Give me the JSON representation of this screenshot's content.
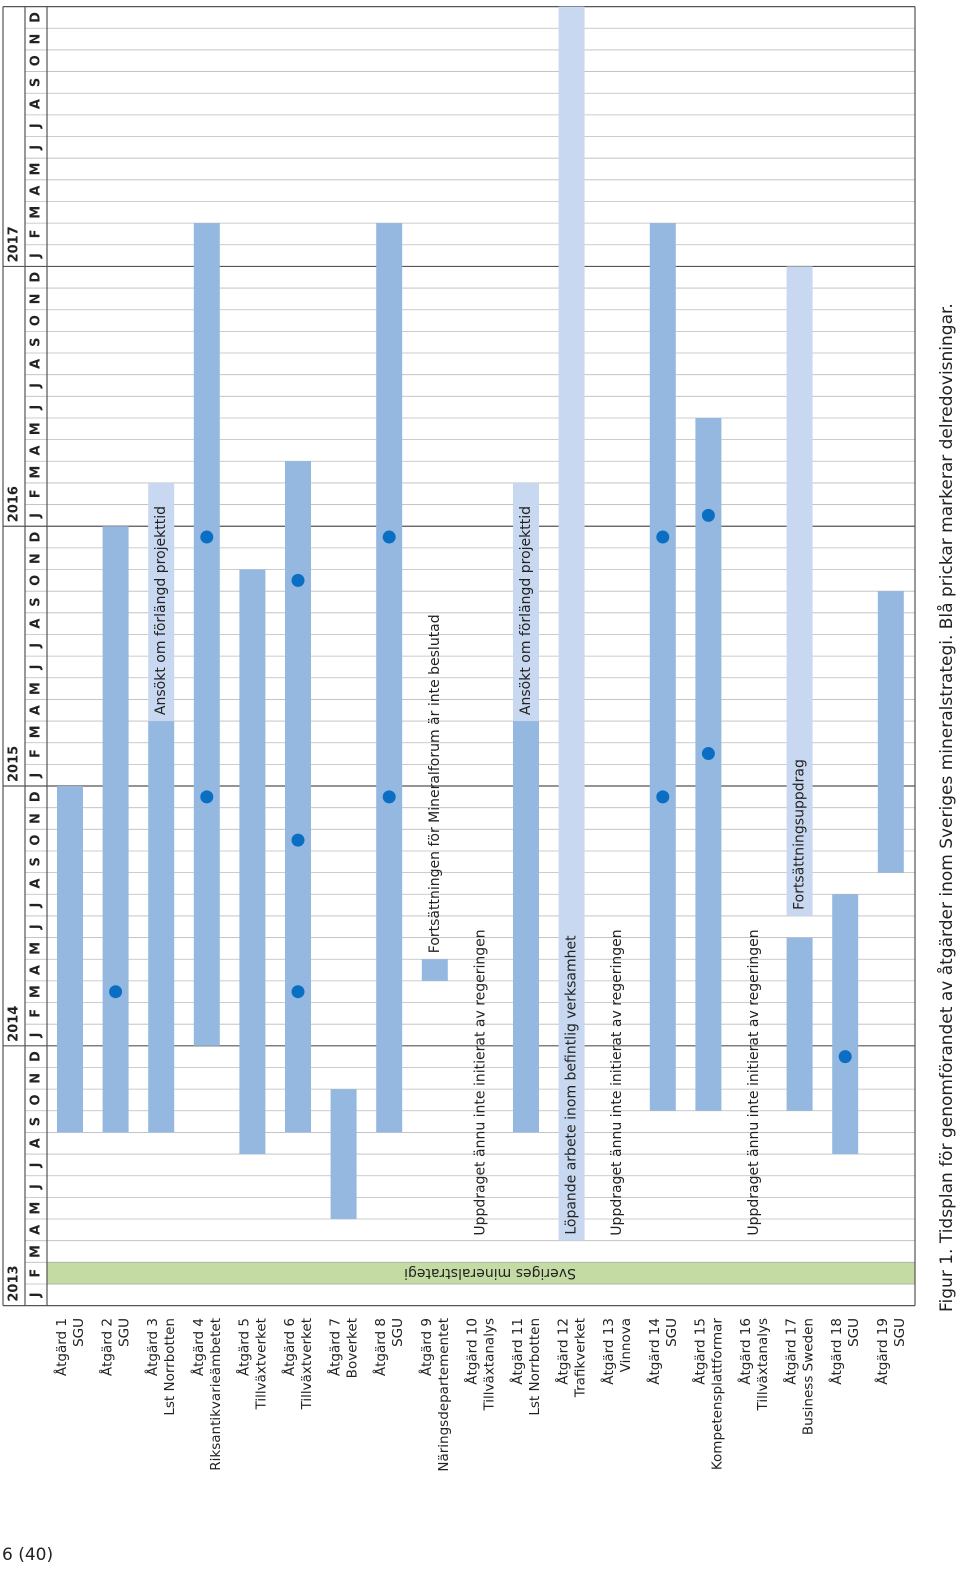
{
  "chart_data": {
    "type": "gantt",
    "caption": "Figur 1. Tidsplan för genomförandet av åtgärder inom Sveriges mineralstrategi. Blå prickar markerar delredovisningar.",
    "page_number": "6 (40)",
    "years": [
      "2013",
      "2014",
      "2015",
      "2016",
      "2017"
    ],
    "month_labels": [
      "J",
      "F",
      "M",
      "A",
      "M",
      "J",
      "J",
      "A",
      "S",
      "O",
      "N",
      "D"
    ],
    "strategy": {
      "label": "Sveriges mineralstrategi",
      "month": "2013-02",
      "color": "#c5dba4"
    },
    "milestone_color": "#0a6fc2",
    "tasks": [
      {
        "label": "Åtgärd 1",
        "agency": "SGU",
        "bars": [
          {
            "start": "2013-09",
            "end": "2014-12",
            "color": "#95b8e1"
          }
        ]
      },
      {
        "label": "Åtgärd 2",
        "agency": "SGU",
        "bars": [
          {
            "start": "2013-09",
            "end": "2015-12",
            "color": "#95b8e1"
          }
        ],
        "milestones": [
          "2014-03"
        ]
      },
      {
        "label": "Åtgärd 3",
        "agency": "Lst Norrbotten",
        "bars": [
          {
            "start": "2013-09",
            "end": "2015-03",
            "color": "#95b8e1"
          },
          {
            "start": "2015-04",
            "end": "2016-02",
            "color": "#c8d8f0",
            "text": "Ansökt om förlängd projekttid"
          }
        ]
      },
      {
        "label": "Åtgärd 4",
        "agency": "Riksantikvarieämbetet",
        "bars": [
          {
            "start": "2014-01",
            "end": "2017-02",
            "color": "#95b8e1"
          }
        ],
        "milestones": [
          "2014-12",
          "2015-12"
        ]
      },
      {
        "label": "Åtgärd 5",
        "agency": "Tillväxtverket",
        "bars": [
          {
            "start": "2013-08",
            "end": "2015-10",
            "color": "#95b8e1"
          }
        ]
      },
      {
        "label": "Åtgärd 6",
        "agency": "Tillväxtverket",
        "bars": [
          {
            "start": "2013-09",
            "end": "2016-03",
            "color": "#95b8e1"
          }
        ],
        "milestones": [
          "2014-03",
          "2014-10",
          "2015-10"
        ]
      },
      {
        "label": "Åtgärd 7",
        "agency": "Boverket",
        "bars": [
          {
            "start": "2013-05",
            "end": "2013-10",
            "color": "#95b8e1"
          }
        ]
      },
      {
        "label": "Åtgärd 8",
        "agency": "SGU",
        "bars": [
          {
            "start": "2013-09",
            "end": "2017-02",
            "color": "#95b8e1"
          }
        ],
        "milestones": [
          "2014-12",
          "2015-12"
        ]
      },
      {
        "label": "Åtgärd 9",
        "agency": "Näringsdepartementet",
        "bars": [
          {
            "start": "2014-04",
            "end": "2014-04",
            "color": "#95b8e1"
          }
        ],
        "note": "Fortsättningen för Mineralforum är inte beslutad"
      },
      {
        "label": "Åtgärd 10",
        "agency": "Tillväxtanalys",
        "note": "Uppdraget ännu inte initierat av regeringen"
      },
      {
        "label": "Åtgärd 11",
        "agency": "Lst Norrbotten",
        "bars": [
          {
            "start": "2013-09",
            "end": "2015-03",
            "color": "#95b8e1"
          },
          {
            "start": "2015-04",
            "end": "2016-02",
            "color": "#c8d8f0",
            "text": "Ansökt om förlängd projekttid"
          }
        ]
      },
      {
        "label": "Åtgärd 12",
        "agency": "Trafikverket",
        "bars": [
          {
            "start": "2013-04",
            "end": "2017-12",
            "color": "#c8d8f0",
            "text": "Löpande arbete inom befintlig verksamhet"
          }
        ]
      },
      {
        "label": "Åtgärd 13",
        "agency": "Vinnova",
        "note": "Uppdraget ännu inte initierat av regeringen"
      },
      {
        "label": "Åtgärd 14",
        "agency": "SGU",
        "bars": [
          {
            "start": "2013-10",
            "end": "2017-02",
            "color": "#95b8e1"
          }
        ],
        "milestones": [
          "2014-12",
          "2015-12"
        ]
      },
      {
        "label": "Åtgärd 15",
        "agency": "Kompetensplattformar",
        "bars": [
          {
            "start": "2013-10",
            "end": "2016-05",
            "color": "#95b8e1"
          }
        ],
        "milestones": [
          "2015-02",
          "2016-01"
        ]
      },
      {
        "label": "Åtgärd 16",
        "agency": "Tillväxtanalys",
        "note": "Uppdraget ännu inte initierat av regeringen"
      },
      {
        "label": "Åtgärd 17",
        "agency": "Business Sweden",
        "bars": [
          {
            "start": "2013-10",
            "end": "2014-05",
            "color": "#95b8e1"
          },
          {
            "start": "2014-07",
            "end": "2016-12",
            "color": "#c8d8f0",
            "text": "Fortsättningsuppdrag"
          }
        ]
      },
      {
        "label": "Åtgärd 18",
        "agency": "SGU",
        "bars": [
          {
            "start": "2013-08",
            "end": "2014-07",
            "color": "#95b8e1"
          }
        ],
        "milestones": [
          "2013-12"
        ]
      },
      {
        "label": "Åtgärd 19",
        "agency": "SGU",
        "bars": [
          {
            "start": "2014-09",
            "end": "2015-09",
            "color": "#95b8e1"
          }
        ]
      }
    ]
  }
}
